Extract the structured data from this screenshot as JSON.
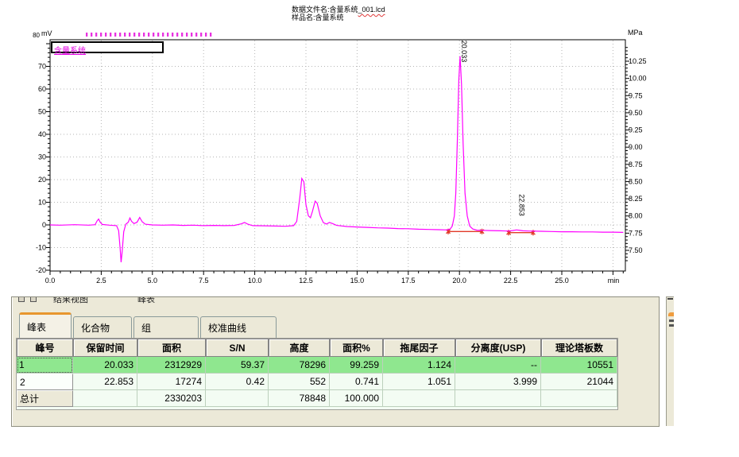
{
  "header": {
    "file_label_prefix": "数据文件名:含量系统",
    "file_label_suffix": "_001.lcd",
    "sample_label": "样品名:含量系统"
  },
  "chart_data": {
    "type": "line",
    "x_unit": "min",
    "y_left_unit": "mV",
    "y_right_unit": "MPa",
    "xlim": [
      0,
      28.1
    ],
    "ylim_left": [
      -20.4,
      81.8
    ],
    "ylim_right": [
      7.2,
      10.56
    ],
    "grid": true,
    "legend_position": "top-left",
    "x_ticks": [
      {
        "v": 0,
        "t": "0.0"
      },
      {
        "v": 2.5,
        "t": "2.5"
      },
      {
        "v": 5,
        "t": "5.0"
      },
      {
        "v": 7.5,
        "t": "7.5"
      },
      {
        "v": 10,
        "t": "10.0"
      },
      {
        "v": 12.5,
        "t": "12.5"
      },
      {
        "v": 15,
        "t": "15.0"
      },
      {
        "v": 17.5,
        "t": "17.5"
      },
      {
        "v": 20,
        "t": "20.0"
      },
      {
        "v": 22.5,
        "t": "22.5"
      },
      {
        "v": 25,
        "t": "25.0"
      }
    ],
    "y_left_ticks": [
      {
        "v": 70,
        "t": "70"
      },
      {
        "v": 60,
        "t": "60"
      },
      {
        "v": 50,
        "t": "50"
      },
      {
        "v": 40,
        "t": "40"
      },
      {
        "v": 30,
        "t": "30"
      },
      {
        "v": 20,
        "t": "20"
      },
      {
        "v": 10,
        "t": "10"
      },
      {
        "v": 0,
        "t": "0"
      },
      {
        "v": -10,
        "t": "-10"
      },
      {
        "v": -20,
        "t": "-20"
      }
    ],
    "y_left_clipped_top": "80",
    "y_right_ticks": [
      {
        "v": 10.25,
        "t": "10.25"
      },
      {
        "v": 10.0,
        "t": "10.00"
      },
      {
        "v": 9.75,
        "t": "9.75"
      },
      {
        "v": 9.5,
        "t": "9.50"
      },
      {
        "v": 9.25,
        "t": "9.25"
      },
      {
        "v": 9.0,
        "t": "9.00"
      },
      {
        "v": 8.75,
        "t": "8.75"
      },
      {
        "v": 8.5,
        "t": "8.50"
      },
      {
        "v": 8.25,
        "t": "8.25"
      },
      {
        "v": 8.0,
        "t": "8.00"
      },
      {
        "v": 7.75,
        "t": "7.75"
      },
      {
        "v": 7.5,
        "t": "7.50"
      }
    ],
    "grid_mv": [
      -10,
      0,
      10,
      20,
      30,
      40,
      50,
      60,
      70
    ],
    "grid_min": [
      2.5,
      5,
      7.5,
      10,
      12.5,
      15,
      17.5,
      20,
      22.5,
      25,
      27.5
    ],
    "series": [
      {
        "name": "含量系统",
        "color": "#ff00ff",
        "points": [
          [
            0,
            0
          ],
          [
            0.5,
            -0.1
          ],
          [
            1.2,
            0.1
          ],
          [
            1.9,
            -0.1
          ],
          [
            2.2,
            0.1
          ],
          [
            2.3,
            1.8
          ],
          [
            2.37,
            2.6
          ],
          [
            2.45,
            1.2
          ],
          [
            2.55,
            0.2
          ],
          [
            2.9,
            -0.1
          ],
          [
            3.25,
            -0.3
          ],
          [
            3.35,
            -2.5
          ],
          [
            3.42,
            -10
          ],
          [
            3.47,
            -16.5
          ],
          [
            3.52,
            -12
          ],
          [
            3.6,
            -3
          ],
          [
            3.7,
            0.3
          ],
          [
            3.82,
            1.2
          ],
          [
            3.9,
            3.1
          ],
          [
            3.98,
            1.6
          ],
          [
            4.1,
            0.6
          ],
          [
            4.25,
            1.2
          ],
          [
            4.38,
            3.3
          ],
          [
            4.5,
            1.4
          ],
          [
            4.65,
            0.3
          ],
          [
            5,
            0
          ],
          [
            5.5,
            -0.1
          ],
          [
            6,
            0
          ],
          [
            6.5,
            -0.2
          ],
          [
            7,
            -0.1
          ],
          [
            7.5,
            -0.3
          ],
          [
            8,
            -0.2
          ],
          [
            8.5,
            -0.3
          ],
          [
            9,
            -0.2
          ],
          [
            9.35,
            0.5
          ],
          [
            9.5,
            1.1
          ],
          [
            9.65,
            0.4
          ],
          [
            9.9,
            -0.3
          ],
          [
            10.5,
            -0.4
          ],
          [
            11,
            -0.5
          ],
          [
            11.5,
            -0.6
          ],
          [
            11.9,
            -0.3
          ],
          [
            12.05,
            1.5
          ],
          [
            12.2,
            12
          ],
          [
            12.3,
            20.5
          ],
          [
            12.4,
            19
          ],
          [
            12.5,
            9
          ],
          [
            12.62,
            4
          ],
          [
            12.72,
            3.2
          ],
          [
            12.82,
            6
          ],
          [
            12.95,
            10.5
          ],
          [
            13.05,
            9.5
          ],
          [
            13.2,
            4
          ],
          [
            13.35,
            1
          ],
          [
            13.5,
            0.4
          ],
          [
            13.65,
            1.1
          ],
          [
            13.8,
            0.6
          ],
          [
            14,
            -0.2
          ],
          [
            14.5,
            -0.7
          ],
          [
            15,
            -0.9
          ],
          [
            15.5,
            -1.1
          ],
          [
            16,
            -1.3
          ],
          [
            16.5,
            -1.4
          ],
          [
            17,
            -1.6
          ],
          [
            17.5,
            -1.7
          ],
          [
            18,
            -1.9
          ],
          [
            18.5,
            -2
          ],
          [
            19,
            -2.1
          ],
          [
            19.4,
            -2.2
          ],
          [
            19.55,
            -1.8
          ],
          [
            19.65,
            -0.5
          ],
          [
            19.75,
            4
          ],
          [
            19.82,
            14
          ],
          [
            19.9,
            38
          ],
          [
            19.97,
            64
          ],
          [
            20.03,
            74.5
          ],
          [
            20.1,
            62
          ],
          [
            20.18,
            36
          ],
          [
            20.27,
            14
          ],
          [
            20.38,
            4
          ],
          [
            20.5,
            -0.5
          ],
          [
            20.65,
            -1.8
          ],
          [
            20.85,
            -2.3
          ],
          [
            21.1,
            -2.4
          ],
          [
            21.5,
            -2.5
          ],
          [
            22,
            -2.6
          ],
          [
            22.4,
            -2.7
          ],
          [
            22.6,
            -2.5
          ],
          [
            22.78,
            -2.2
          ],
          [
            22.9,
            -2.3
          ],
          [
            23.1,
            -2.6
          ],
          [
            23.4,
            -2.7
          ],
          [
            24,
            -2.8
          ],
          [
            24.5,
            -2.9
          ],
          [
            25,
            -3
          ],
          [
            25.5,
            -3
          ],
          [
            26,
            -3.1
          ],
          [
            26.5,
            -3.1
          ],
          [
            27,
            -3.2
          ],
          [
            27.5,
            -3.2
          ],
          [
            28,
            -3.3
          ]
        ]
      }
    ],
    "peaks": [
      {
        "label": "20.033",
        "t": 20.033,
        "apex_mv": 74.5
      },
      {
        "label": "22.853",
        "t": 22.853,
        "apex_mv": -2.2
      }
    ],
    "integration": [
      {
        "t1": 19.45,
        "t2": 21.1,
        "mv": -2.9
      },
      {
        "t1": 22.4,
        "t2": 23.6,
        "mv": -3.4
      }
    ]
  },
  "panel": {
    "title_items": [
      "结果视图",
      "峰表"
    ],
    "tabs": [
      {
        "id": "peak-table",
        "label": "峰表",
        "active": true
      },
      {
        "id": "compound",
        "label": "化合物",
        "active": false
      },
      {
        "id": "group",
        "label": "组",
        "active": false
      },
      {
        "id": "calibration-curve",
        "label": "校准曲线",
        "active": false
      }
    ],
    "table": {
      "columns": [
        "峰号",
        "保留时间",
        "面积",
        "S/N",
        "高度",
        "面积%",
        "拖尾因子",
        "分离度(USP)",
        "理论塔板数"
      ],
      "rows": [
        [
          "1",
          "20.033",
          "2312929",
          "59.37",
          "78296",
          "99.259",
          "1.124",
          "--",
          "10551"
        ],
        [
          "2",
          "22.853",
          "17274",
          "0.42",
          "552",
          "0.741",
          "1.051",
          "3.999",
          "21044"
        ],
        [
          "总计",
          "",
          "2330203",
          "",
          "78848",
          "100.000",
          "",
          "",
          ""
        ]
      ]
    }
  }
}
